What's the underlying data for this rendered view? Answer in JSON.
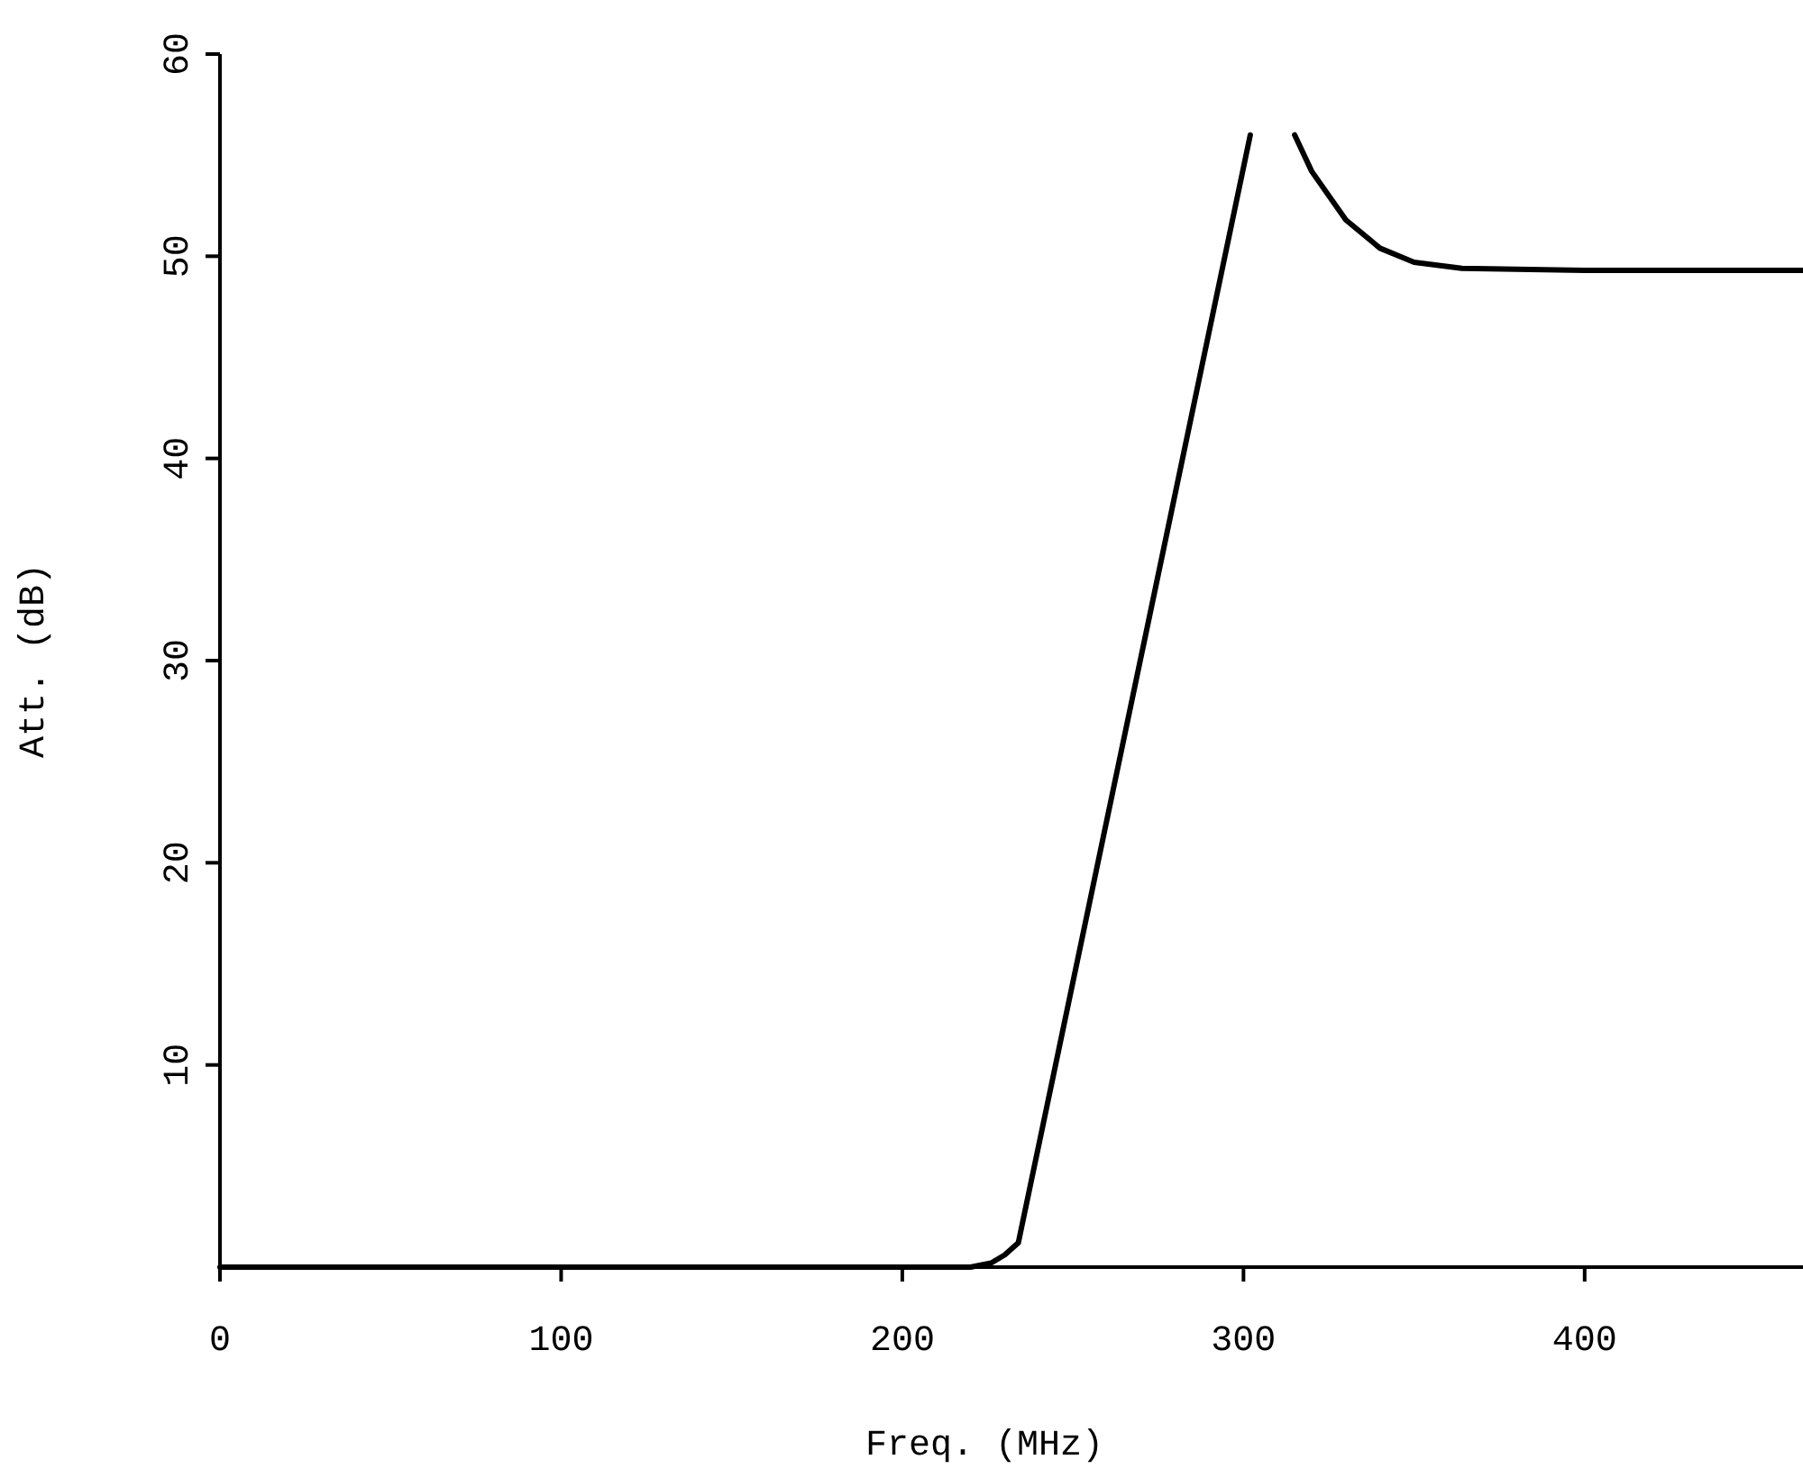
{
  "chart_data": {
    "type": "line",
    "xlabel": "Freq. (MHz)",
    "ylabel": "Att. (dB)",
    "x": [
      0,
      100,
      200,
      220,
      226,
      230,
      234,
      302,
      310,
      315,
      320,
      330,
      340,
      350,
      364,
      400,
      464
    ],
    "series": [
      {
        "color": "#000000",
        "values": [
          0,
          0,
          0,
          0,
          0.2,
          0.6,
          1.2,
          56,
          null,
          56,
          54.2,
          51.8,
          50.4,
          49.7,
          49.4,
          49.3,
          49.3
        ]
      }
    ],
    "xlim": [
      0,
      464
    ],
    "ylim": [
      0,
      60
    ],
    "xticks": [
      0,
      100,
      200,
      300,
      400
    ],
    "yticks": [
      10,
      20,
      30,
      40,
      50,
      60
    ],
    "marker": "none"
  }
}
